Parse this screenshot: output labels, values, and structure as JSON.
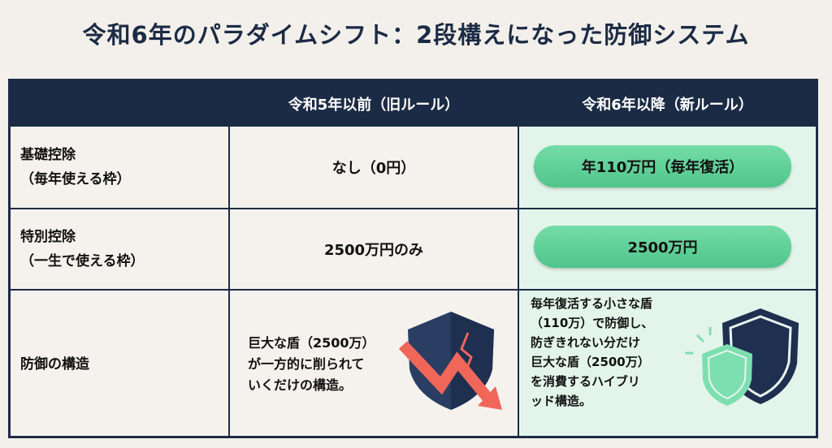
{
  "title": "令和6年のパラダイムシフト：2段構えになった防御システム",
  "headers": [
    "",
    "令和5年以前（旧ルール）",
    "令和6年以降（新ルール）"
  ],
  "rows": [
    {
      "label_line1": "基礎控除",
      "label_line2": "（毎年使える枠）",
      "old": "なし（0円）",
      "new": "年110万円（毎年復活）"
    },
    {
      "label_line1": "特別控除",
      "label_line2": "（一生で使える枠）",
      "old": "2500万円のみ",
      "new": "2500万円"
    },
    {
      "label_line1": "防御の構造",
      "old_lines": [
        "巨大な盾（2500万）",
        "が一方的に削られて",
        "いくだけの構造。"
      ],
      "new_lines": [
        "毎年復活する小さな盾",
        "（110万）で防御し、",
        "防ぎきれない分だけ",
        "巨大な盾（2500万）",
        "を消費するハイブリ",
        "ッド構造。"
      ]
    }
  ],
  "colors": {
    "navy": "#1c2b45",
    "green": "#5fd39a",
    "red_arrow": "#f0675a"
  }
}
